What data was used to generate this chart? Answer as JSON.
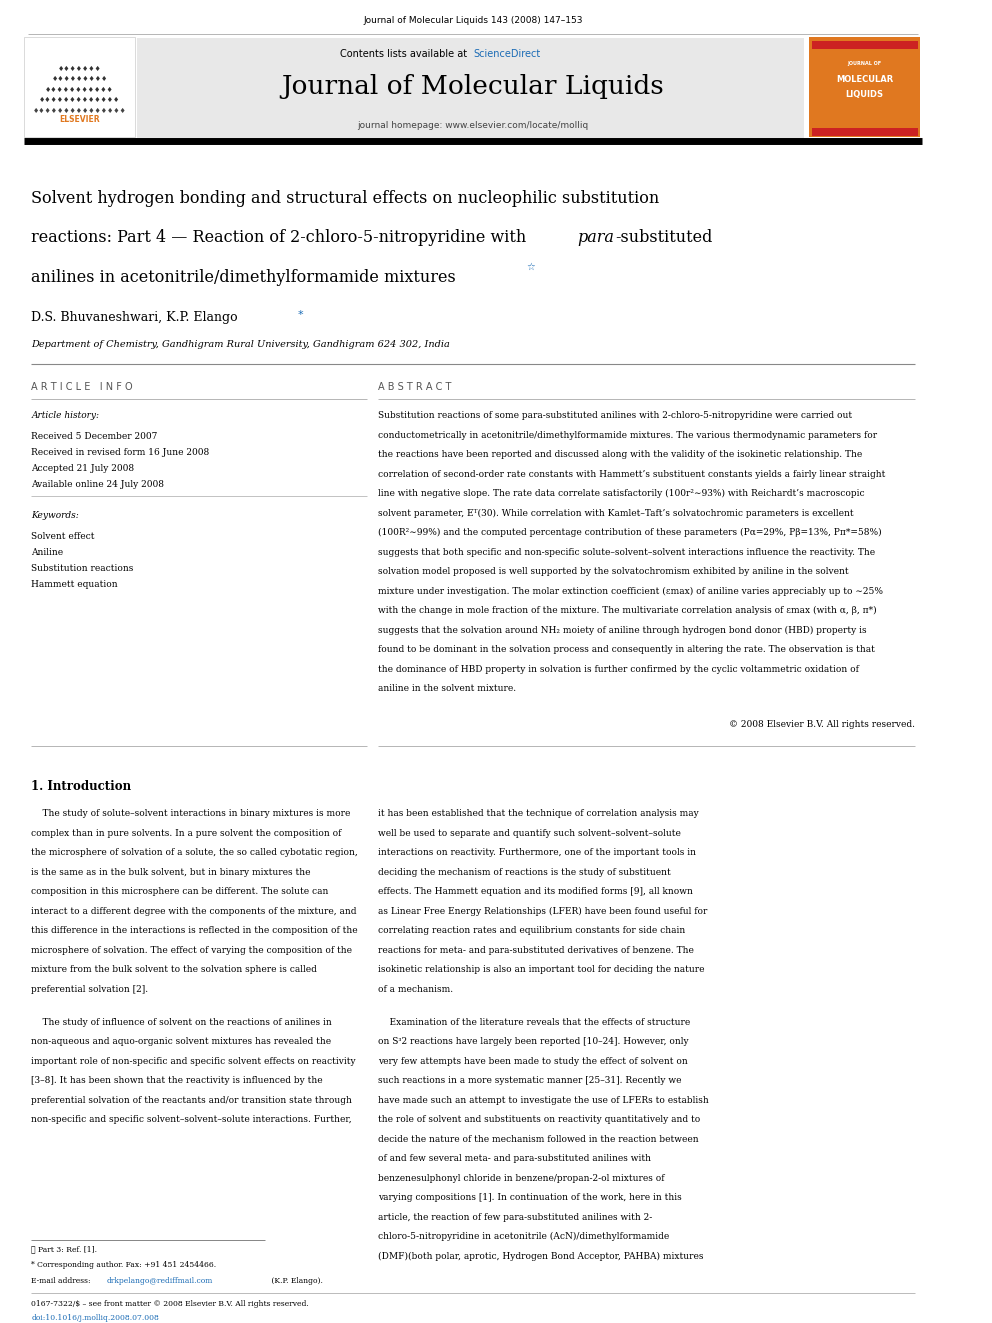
{
  "page_width": 9.92,
  "page_height": 13.23,
  "background_color": "#ffffff",
  "top_journal_ref": "Journal of Molecular Liquids 143 (2008) 147–153",
  "header_bg_color": "#e8e8e8",
  "header_contents": "Contents lists available at",
  "header_sciencedirect": "ScienceDirect",
  "header_sciencedirect_color": "#1a6bb5",
  "journal_title": "Journal of Molecular Liquids",
  "journal_homepage": "journal homepage: www.elsevier.com/locate/molliq",
  "orange_color": "#e07820",
  "article_title_line1": "Solvent hydrogen bonding and structural effects on nucleophilic substitution",
  "article_title_line2": "reactions: Part 4 — Reaction of 2-chloro-5-nitropyridine with ",
  "article_title_para": "para",
  "article_title_line2b": "-substituted",
  "article_title_line3": "anilines in acetonitrile/dimethylformamide mixtures",
  "authors": "D.S. Bhuvaneshwari, K.P. Elango",
  "affiliation": "Department of Chemistry, Gandhigram Rural University, Gandhigram 624 302, India",
  "article_info_header": "A R T I C L E   I N F O",
  "abstract_header": "A B S T R A C T",
  "article_history_header": "Article history:",
  "received": "Received 5 December 2007",
  "revised": "Received in revised form 16 June 2008",
  "accepted": "Accepted 21 July 2008",
  "available": "Available online 24 July 2008",
  "keywords_header": "Keywords:",
  "keyword1": "Solvent effect",
  "keyword2": "Aniline",
  "keyword3": "Substitution reactions",
  "keyword4": "Hammett equation",
  "copyright": "© 2008 Elsevier B.V. All rights reserved.",
  "intro_header": "1. Introduction",
  "footnote1": "☆ Part 3: Ref. [1].",
  "footnote2": "* Corresponding author. Fax: +91 451 2454466.",
  "footnote3": "E-mail address: drkpelango@rediffmail.com (K.P. Elango).",
  "footnote3_pre": "E-mail address: ",
  "footnote3_email": "drkpelango@rediffmail.com",
  "footnote3_post": " (K.P. Elango).",
  "footer_text": "0167-7322/$ – see front matter © 2008 Elsevier B.V. All rights reserved.",
  "footer_doi": "doi:10.1016/j.molliq.2008.07.008"
}
